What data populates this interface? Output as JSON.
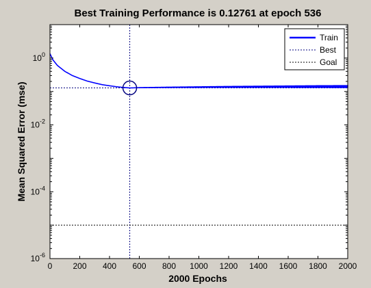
{
  "chart_data": {
    "type": "line",
    "title": "Best Training Performance is 0.12761 at epoch 536",
    "xlabel": "2000 Epochs",
    "ylabel": "Mean Squared Error  (mse)",
    "xlim": [
      0,
      2000
    ],
    "ylim": [
      1e-06,
      10
    ],
    "yscale": "log",
    "x_ticks": [
      0,
      200,
      400,
      600,
      800,
      1000,
      1200,
      1400,
      1600,
      1800,
      2000
    ],
    "y_ticks": [
      {
        "value": 1,
        "base": "10",
        "exp": "0"
      },
      {
        "value": 0.01,
        "base": "10",
        "exp": "-2"
      },
      {
        "value": 0.0001,
        "base": "10",
        "exp": "-4"
      },
      {
        "value": 1e-06,
        "base": "10",
        "exp": "-6"
      }
    ],
    "grid": false,
    "legend_position": "top-right",
    "series": [
      {
        "name": "Train",
        "style": "solid",
        "color": "#0000ff",
        "x": [
          0,
          20,
          50,
          100,
          150,
          200,
          250,
          300,
          350,
          400,
          450,
          500,
          536,
          600,
          800,
          1000,
          1200,
          1400,
          1600,
          1800,
          2000
        ],
        "values": [
          1.35,
          0.88,
          0.6,
          0.4,
          0.3,
          0.245,
          0.205,
          0.18,
          0.16,
          0.148,
          0.138,
          0.131,
          0.12761,
          0.13,
          0.133,
          0.135,
          0.137,
          0.138,
          0.139,
          0.14,
          0.14
        ],
        "oscillation_start_epoch": 600,
        "oscillation_amplitude_decades": [
          0.03,
          0.09
        ]
      },
      {
        "name": "Best",
        "style": "dotted",
        "color": "#00007f",
        "x_value": 536,
        "y_value": 0.12761
      },
      {
        "name": "Goal",
        "style": "dotted",
        "color": "#000000",
        "y_value": 1e-05
      }
    ],
    "best_marker": {
      "x": 536,
      "y": 0.12761,
      "shape": "circle",
      "color": "#00007f"
    }
  }
}
